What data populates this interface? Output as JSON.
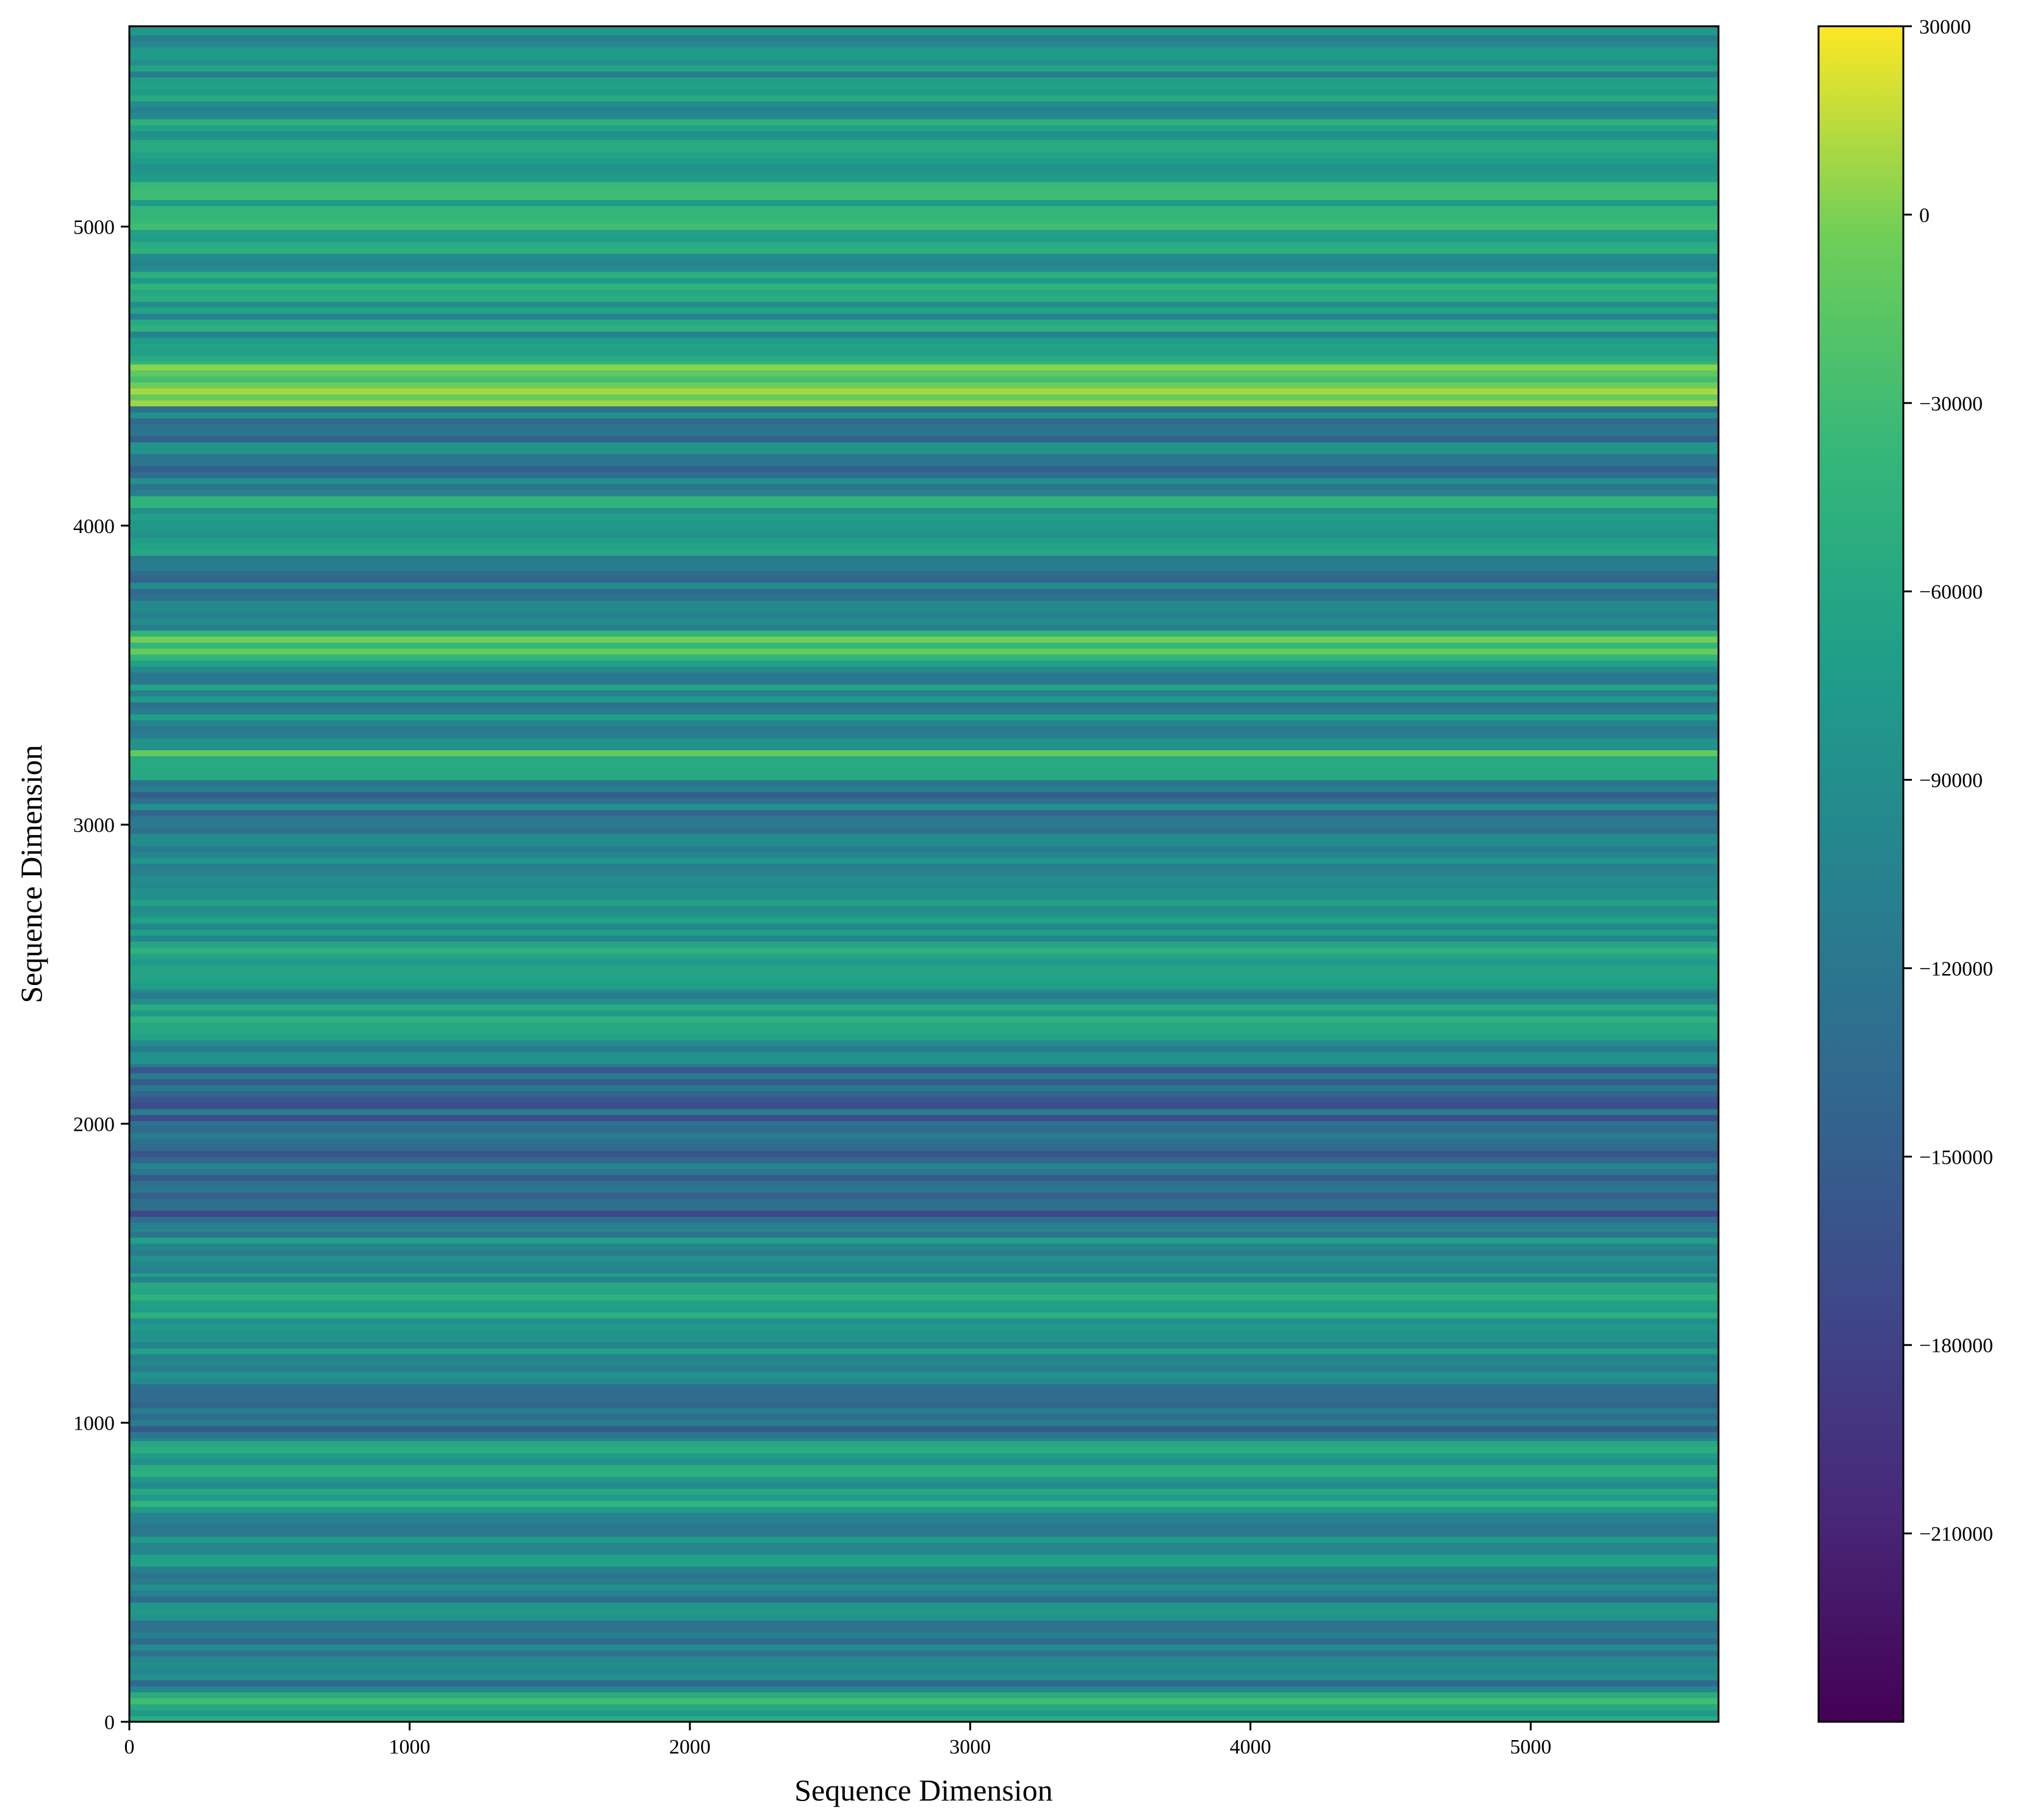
{
  "chart_data": {
    "type": "heatmap",
    "title": "",
    "xlabel": "Sequence Dimension",
    "ylabel": "Sequence Dimension",
    "xlim": [
      0,
      5670
    ],
    "ylim": [
      0,
      5670
    ],
    "x_ticks": [
      0,
      1000,
      2000,
      3000,
      4000,
      5000
    ],
    "y_ticks": [
      0,
      1000,
      2000,
      3000,
      4000,
      5000
    ],
    "x_tick_labels": [
      "0",
      "1000",
      "2000",
      "3000",
      "4000",
      "5000"
    ],
    "y_tick_labels": [
      "0",
      "1000",
      "2000",
      "3000",
      "4000",
      "5000"
    ],
    "colorbar": {
      "colormap": "viridis",
      "range": [
        -240000,
        30000
      ],
      "ticks": [
        30000,
        0,
        -30000,
        -60000,
        -90000,
        -120000,
        -150000,
        -180000,
        -210000
      ],
      "tick_labels": [
        "30000",
        "0",
        "−30000",
        "−60000",
        "−90000",
        "−120000",
        "−150000",
        "−180000",
        "−210000"
      ]
    },
    "pattern": "horizontal bands: each row has a nearly constant value across the x dimension",
    "row_profile": [
      {
        "y_start": 0,
        "y_end": 100,
        "value": -65000
      },
      {
        "y_start": 100,
        "y_end": 300,
        "value": -115000
      },
      {
        "y_start": 300,
        "y_end": 500,
        "value": -105000
      },
      {
        "y_start": 500,
        "y_end": 700,
        "value": -95000
      },
      {
        "y_start": 700,
        "y_end": 950,
        "value": -75000
      },
      {
        "y_start": 950,
        "y_end": 1150,
        "value": -125000
      },
      {
        "y_start": 1150,
        "y_end": 1250,
        "value": -80000
      },
      {
        "y_start": 1250,
        "y_end": 1500,
        "value": -70000
      },
      {
        "y_start": 1500,
        "y_end": 1650,
        "value": -100000
      },
      {
        "y_start": 1650,
        "y_end": 2200,
        "value": -140000
      },
      {
        "y_start": 2200,
        "y_end": 2450,
        "value": -80000
      },
      {
        "y_start": 2450,
        "y_end": 2650,
        "value": -75000
      },
      {
        "y_start": 2650,
        "y_end": 2850,
        "value": -80000
      },
      {
        "y_start": 2850,
        "y_end": 3150,
        "value": -115000
      },
      {
        "y_start": 3150,
        "y_end": 3250,
        "value": -30000
      },
      {
        "y_start": 3250,
        "y_end": 3550,
        "value": -100000
      },
      {
        "y_start": 3550,
        "y_end": 3650,
        "value": -25000
      },
      {
        "y_start": 3650,
        "y_end": 3900,
        "value": -110000
      },
      {
        "y_start": 3900,
        "y_end": 4100,
        "value": -75000
      },
      {
        "y_start": 4100,
        "y_end": 4400,
        "value": -115000
      },
      {
        "y_start": 4400,
        "y_end": 4550,
        "value": -25000
      },
      {
        "y_start": 4550,
        "y_end": 4950,
        "value": -75000
      },
      {
        "y_start": 4950,
        "y_end": 5300,
        "value": -55000
      },
      {
        "y_start": 5300,
        "y_end": 5500,
        "value": -75000
      },
      {
        "y_start": 5500,
        "y_end": 5670,
        "value": -85000
      }
    ]
  }
}
